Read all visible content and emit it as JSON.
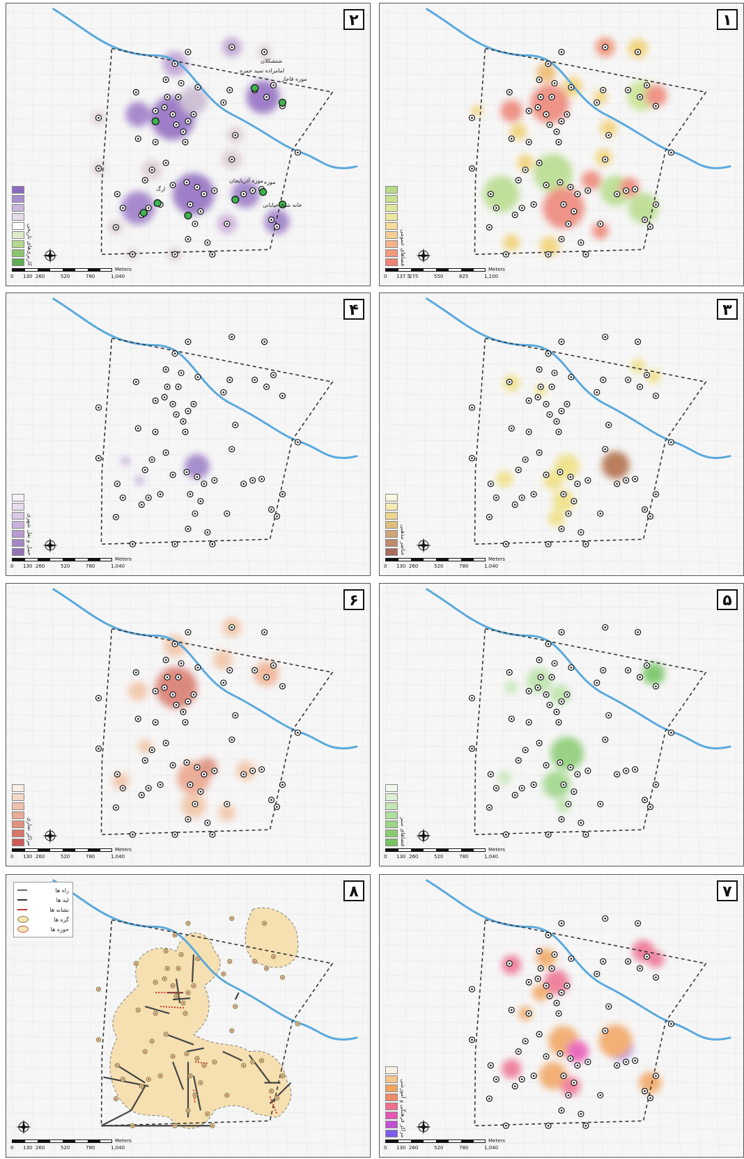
{
  "scale": {
    "unit": "Meters",
    "ticks_a": [
      "0",
      "130",
      "260",
      "520",
      "780",
      "1,040"
    ],
    "ticks_b": [
      "0",
      "137.5",
      "275",
      "550",
      "825",
      "1,100"
    ]
  },
  "compass": {
    "n": "N",
    "s": "S",
    "e": "E",
    "w": "W"
  },
  "colors": {
    "river": "#5aa9dd",
    "boundary": "#333333",
    "background": "#f6f6f6"
  },
  "panels": [
    {
      "id": "2",
      "label": "۲",
      "color_theme": "purple-green",
      "legend_title": "کاربری‌های تاریخی",
      "legend_colors": [
        "#8b6bbd",
        "#a78fcf",
        "#c9b6dd",
        "#e4dce6",
        "#ffffff",
        "#dfeccb",
        "#b5d98f",
        "#8cc56f",
        "#5fae55"
      ],
      "labels": [
        "شتشکلان",
        "امامزاده سید حمزه",
        "موزه قاجار",
        "موزه آذربایجان",
        "ارگ",
        "موزه",
        "خانه شیخ خیابانی"
      ]
    },
    {
      "id": "1",
      "label": "۱",
      "color_theme": "red-yellow-green",
      "legend_title": "فضاهای عمومی",
      "legend_colors": [
        "#b6dc8a",
        "#c8e38f",
        "#dde99a",
        "#efe79f",
        "#f5dc9c",
        "#f6cf95",
        "#f4b48a",
        "#f19a7e",
        "#ee8375"
      ]
    },
    {
      "id": "4",
      "label": "۴",
      "color_theme": "lavender",
      "legend_title": "حمل و نقل شهری",
      "legend_colors": [
        "#f5f1f8",
        "#e8ddef",
        "#d9c8e6",
        "#c8b2dc",
        "#b79bd1",
        "#a587c5",
        "#9373b8"
      ]
    },
    {
      "id": "3",
      "label": "۳",
      "color_theme": "yellow-brown",
      "legend_title": "عناصر مذهبی",
      "legend_colors": [
        "#fbf6dc",
        "#f6eab4",
        "#ecd690",
        "#ddbf7e",
        "#cfa57a",
        "#bf8a6e",
        "#a96c5d"
      ]
    },
    {
      "id": "6",
      "label": "۶",
      "color_theme": "salmon",
      "legend_title": "مراکز تجاری",
      "legend_colors": [
        "#fbeee6",
        "#f5d8c8",
        "#efc3ae",
        "#e9ac96",
        "#e1927f",
        "#d8766a",
        "#cf5b58"
      ]
    },
    {
      "id": "5",
      "label": "۵",
      "color_theme": "green",
      "legend_title": "فضاهای سبز",
      "legend_colors": [
        "#f1f8ec",
        "#ddf0d2",
        "#c6e7b7",
        "#b0de9d",
        "#9bd585",
        "#88cc71",
        "#76c361"
      ]
    },
    {
      "id": "8",
      "label": "۸",
      "color_theme": "tan",
      "key_items": [
        "راه ها",
        "لبه ها",
        "نشانه ها",
        "گره ها",
        "حوزه ها"
      ]
    },
    {
      "id": "7",
      "label": "۷",
      "color_theme": "orange-magenta",
      "legend_title": "مراکز فرهنگی و آموزشی",
      "legend_colors": [
        "#fbf2e4",
        "#f6c78a",
        "#f2a45f",
        "#ef8a6a",
        "#ee6e8e",
        "#e855b4",
        "#c44fd2",
        "#7b5de8"
      ]
    }
  ]
}
